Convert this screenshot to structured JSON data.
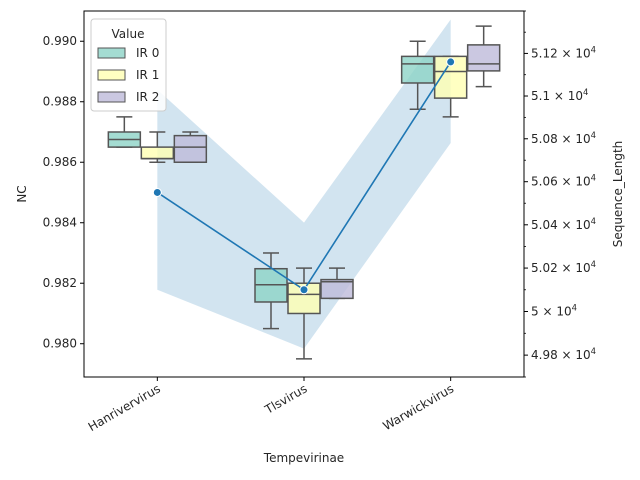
{
  "chart_data": {
    "type": "box",
    "xlabel": "Tempevirinae",
    "ylabel": "NC",
    "y2label": "Sequence_Length",
    "categories": [
      "Hanrivervirus",
      "Tlsvirus",
      "Warwickvirus"
    ],
    "ylim": [
      0.9789,
      0.991
    ],
    "y_ticks": [
      0.98,
      0.982,
      0.984,
      0.986,
      0.988,
      0.99
    ],
    "y_tick_labels": [
      "0.980",
      "0.982",
      "0.984",
      "0.986",
      "0.988",
      "0.990"
    ],
    "y2_scale": "log",
    "y2lim": [
      49700,
      51400
    ],
    "y2_ticks": [
      49800,
      50000,
      50200,
      50400,
      50600,
      50800,
      51000,
      51200
    ],
    "y2_tick_labels": [
      [
        "4.98",
        "10",
        "4"
      ],
      [
        "5",
        "10",
        "4"
      ],
      [
        "5.02",
        "10",
        "4"
      ],
      [
        "5.04",
        "10",
        "4"
      ],
      [
        "5.06",
        "10",
        "4"
      ],
      [
        "5.08",
        "10",
        "4"
      ],
      [
        "5.1",
        "10",
        "4"
      ],
      [
        "5.12",
        "10",
        "4"
      ]
    ],
    "legend": {
      "title": "Value",
      "position": "upper-left",
      "entries": [
        {
          "label": "IR 0",
          "color": "#8dd3c7"
        },
        {
          "label": "IR 1",
          "color": "#ffffb3"
        },
        {
          "label": "IR 2",
          "color": "#bebada"
        }
      ]
    },
    "box_series": [
      {
        "name": "IR 0",
        "color": "#8dd3c7",
        "boxes": [
          {
            "whislo": 0.9865,
            "q1": 0.9865,
            "med": 0.98675,
            "q3": 0.987,
            "whishi": 0.9875
          },
          {
            "whislo": 0.9805,
            "q1": 0.98138,
            "med": 0.98195,
            "q3": 0.98248,
            "whishi": 0.983
          },
          {
            "whislo": 0.98775,
            "q1": 0.98862,
            "med": 0.98925,
            "q3": 0.9895,
            "whishi": 0.99
          }
        ]
      },
      {
        "name": "IR 1",
        "color": "#ffffb3",
        "boxes": [
          {
            "whislo": 0.986,
            "q1": 0.98612,
            "med": 0.98612,
            "q3": 0.9865,
            "whishi": 0.987
          },
          {
            "whislo": 0.9795,
            "q1": 0.981,
            "med": 0.98163,
            "q3": 0.982,
            "whishi": 0.9825
          },
          {
            "whislo": 0.9875,
            "q1": 0.98812,
            "med": 0.989,
            "q3": 0.9895,
            "whishi": 0.9895
          }
        ]
      },
      {
        "name": "IR 2",
        "color": "#bebada",
        "boxes": [
          {
            "whislo": 0.986,
            "q1": 0.986,
            "med": 0.9865,
            "q3": 0.98688,
            "whishi": 0.987
          },
          {
            "whislo": 0.9815,
            "q1": 0.9815,
            "med": 0.98205,
            "q3": 0.98212,
            "whishi": 0.9825
          },
          {
            "whislo": 0.9885,
            "q1": 0.98902,
            "med": 0.98925,
            "q3": 0.98988,
            "whishi": 0.9905
          }
        ]
      }
    ],
    "line_series": {
      "axis": "right",
      "color": "#1f77b4",
      "values": [
        50550,
        50100,
        51160
      ],
      "ci_lower": [
        50100,
        49830,
        50780
      ],
      "ci_upper": [
        51030,
        50410,
        51360
      ]
    }
  }
}
